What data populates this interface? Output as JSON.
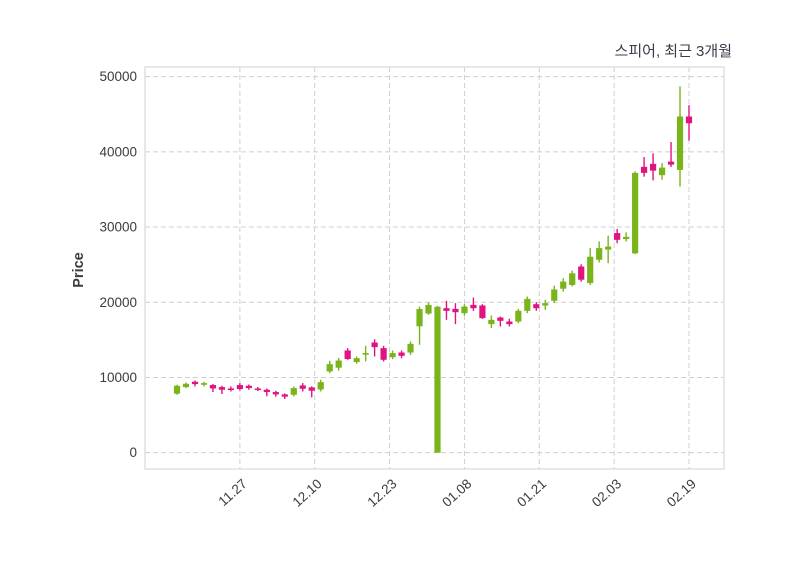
{
  "chart": {
    "title": "스피어, 최근 3개월",
    "y_axis_label": "Price"
  },
  "chart_data": {
    "type": "candlestick",
    "title": "스피어, 최근 3개월",
    "ylabel": "Price",
    "xlabel": "",
    "grid": true,
    "legend_position": "none",
    "ylim": [
      -2170,
      51280
    ],
    "y_ticks": [
      0,
      10000,
      20000,
      30000,
      40000,
      50000
    ],
    "x_ticks": [
      {
        "label": "11.27",
        "pos": 7
      },
      {
        "label": "12.10",
        "pos": 15.33
      },
      {
        "label": "12.23",
        "pos": 23.67
      },
      {
        "label": "01.08",
        "pos": 32
      },
      {
        "label": "01.21",
        "pos": 40.33
      },
      {
        "label": "02.03",
        "pos": 48.67
      },
      {
        "label": "02.19",
        "pos": 57
      }
    ],
    "up_color": "#79b51a",
    "down_color": "#e0137f",
    "candle_format": [
      "open",
      "high",
      "low",
      "close"
    ],
    "candles": [
      [
        7850,
        9030,
        7700,
        8900
      ],
      [
        8720,
        9340,
        8590,
        9160
      ],
      [
        9430,
        9600,
        8810,
        9120
      ],
      [
        9030,
        9430,
        8810,
        9250
      ],
      [
        8990,
        9120,
        8060,
        8540
      ],
      [
        8720,
        8900,
        7800,
        8370
      ],
      [
        8540,
        8810,
        8140,
        8370
      ],
      [
        8990,
        9250,
        8280,
        8460
      ],
      [
        8900,
        9070,
        8370,
        8590
      ],
      [
        8540,
        8720,
        8190,
        8410
      ],
      [
        8370,
        8540,
        7500,
        8060
      ],
      [
        8060,
        8230,
        7440,
        7750
      ],
      [
        7750,
        7880,
        7150,
        7450
      ],
      [
        7700,
        8810,
        7480,
        8590
      ],
      [
        8940,
        9250,
        8140,
        8500
      ],
      [
        8680,
        8810,
        7350,
        8240
      ],
      [
        8400,
        9690,
        8140,
        9380
      ],
      [
        10800,
        12220,
        10580,
        11770
      ],
      [
        11300,
        12600,
        10900,
        12250
      ],
      [
        13590,
        13900,
        12350,
        12450
      ],
      [
        12050,
        12790,
        11820,
        12570
      ],
      [
        13150,
        14210,
        12130,
        13250
      ],
      [
        14650,
        15090,
        12790,
        14030
      ],
      [
        13900,
        14210,
        12130,
        12350
      ],
      [
        12700,
        13590,
        12440,
        13240
      ],
      [
        13320,
        13590,
        12570,
        12880
      ],
      [
        13320,
        14790,
        13010,
        14470
      ],
      [
        16800,
        19430,
        14350,
        19100
      ],
      [
        18500,
        19960,
        18330,
        19650
      ],
      [
        0,
        19520,
        0,
        19400
      ],
      [
        19210,
        20190,
        17660,
        18860
      ],
      [
        19120,
        19880,
        17090,
        18680
      ],
      [
        18550,
        19740,
        18240,
        19430
      ],
      [
        19650,
        20630,
        18860,
        19210
      ],
      [
        19570,
        19740,
        17800,
        17890
      ],
      [
        17090,
        18240,
        16560,
        17660
      ],
      [
        17970,
        18100,
        16780,
        17530
      ],
      [
        17440,
        17800,
        16780,
        17090
      ],
      [
        17440,
        19120,
        17220,
        18860
      ],
      [
        18860,
        20760,
        18550,
        20450
      ],
      [
        19740,
        20010,
        18860,
        19210
      ],
      [
        19570,
        20320,
        18990,
        19880
      ],
      [
        20200,
        22200,
        19900,
        21700
      ],
      [
        21800,
        23200,
        21400,
        22750
      ],
      [
        22300,
        24200,
        22100,
        23850
      ],
      [
        24750,
        25050,
        22750,
        23000
      ],
      [
        22550,
        27200,
        22300,
        26050
      ],
      [
        25650,
        28100,
        25300,
        27200
      ],
      [
        27000,
        28850,
        25200,
        27400
      ],
      [
        29200,
        29750,
        27850,
        28300
      ],
      [
        28400,
        29300,
        28070,
        28700
      ],
      [
        26500,
        37400,
        26400,
        37200
      ],
      [
        38000,
        39300,
        36700,
        37200
      ],
      [
        38400,
        39800,
        36200,
        37500
      ],
      [
        36900,
        38500,
        36300,
        37900
      ],
      [
        38700,
        41300,
        38000,
        38300
      ],
      [
        37600,
        48700,
        35400,
        44700
      ],
      [
        44700,
        46200,
        41500,
        43800
      ]
    ]
  }
}
